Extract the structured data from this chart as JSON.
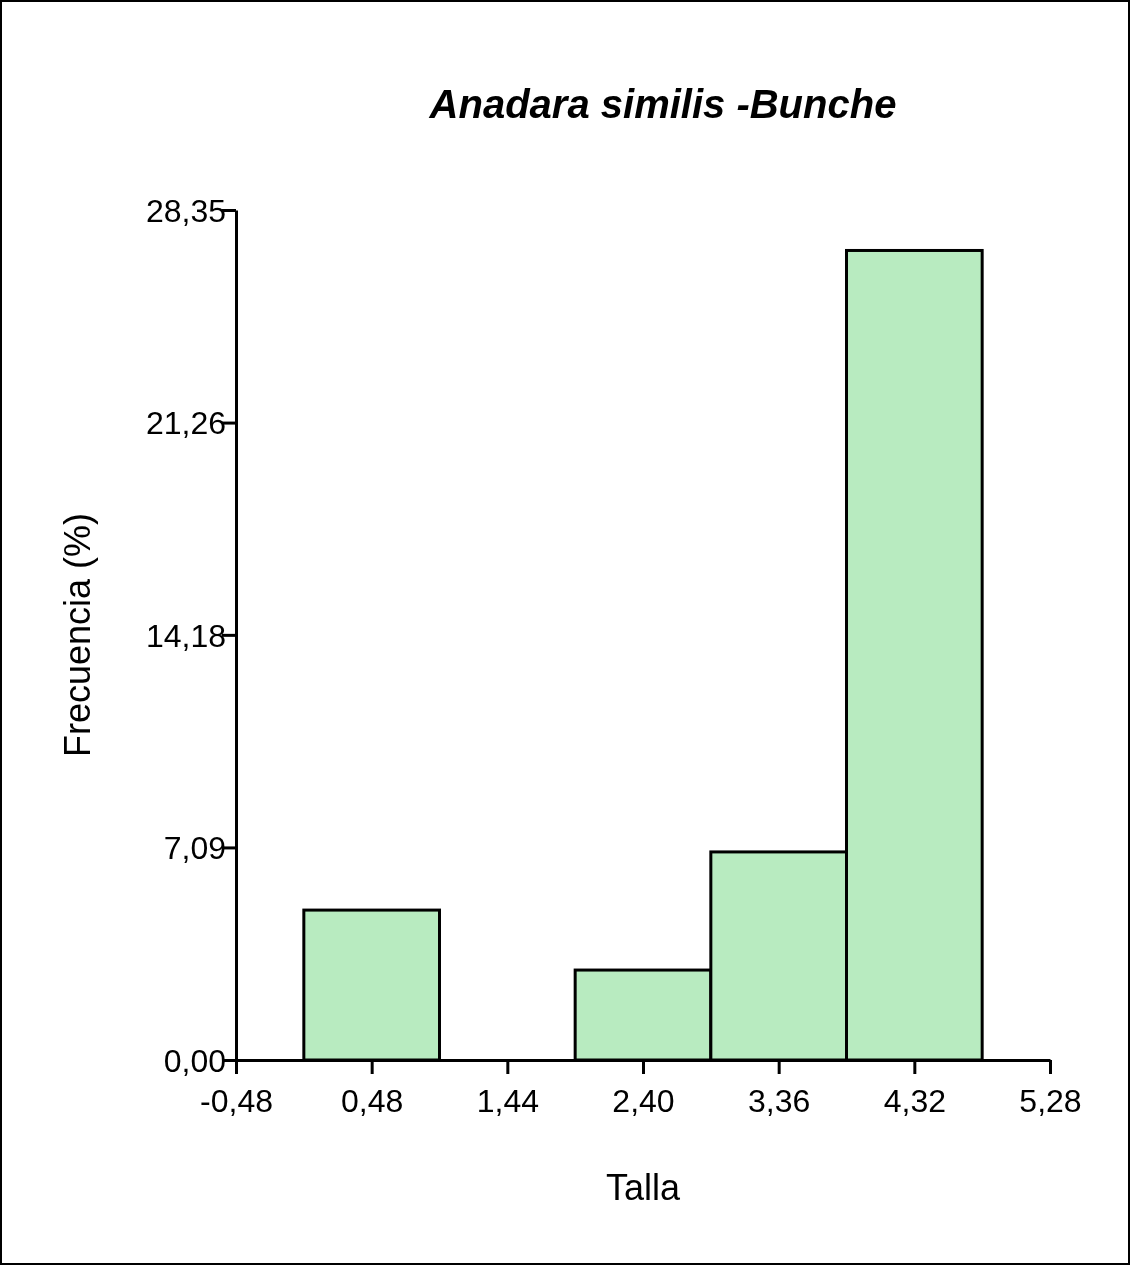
{
  "chart_data": {
    "type": "histogram",
    "title": "Anadara similis -Bunche",
    "xlabel": "Talla",
    "ylabel": "Frecuencia (%)",
    "bins": [
      0,
      0.96,
      1.92,
      2.88,
      3.84,
      4.8
    ],
    "values": [
      5.0,
      0,
      3.0,
      6.94,
      27.0
    ],
    "color": "#b8ebc0",
    "xlim": [
      -0.48,
      5.28
    ],
    "xticks": [
      {
        "value": -0.48,
        "label": "-0,48"
      },
      {
        "value": 0.48,
        "label": "0,48"
      },
      {
        "value": 1.44,
        "label": "1,44"
      },
      {
        "value": 2.4,
        "label": "2,40"
      },
      {
        "value": 3.36,
        "label": "3,36"
      },
      {
        "value": 4.32,
        "label": "4,32"
      },
      {
        "value": 5.28,
        "label": "5,28"
      }
    ],
    "ylim": [
      0,
      28.35
    ],
    "yticks": [
      {
        "value": 0,
        "label": "0,00"
      },
      {
        "value": 7.09,
        "label": "7,09"
      },
      {
        "value": 14.18,
        "label": "14,18"
      },
      {
        "value": 21.26,
        "label": "21,26"
      },
      {
        "value": 28.35,
        "label": "28,35"
      }
    ],
    "grid": false
  }
}
